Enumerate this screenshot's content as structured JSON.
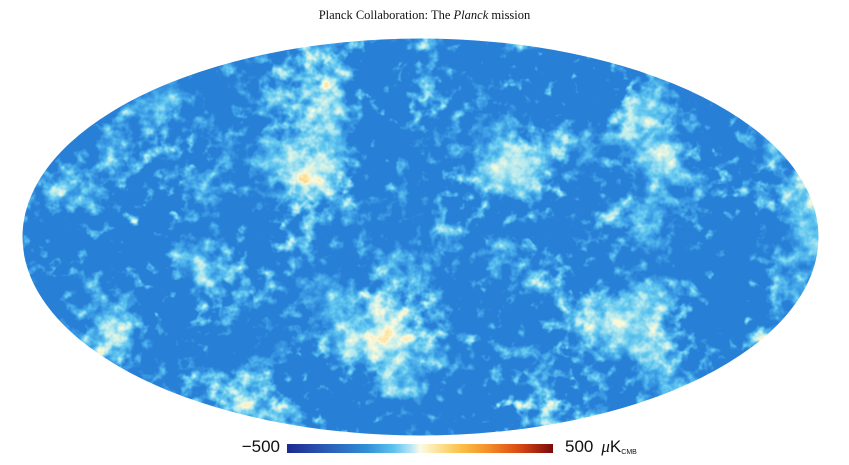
{
  "header": {
    "running_head_prefix": "Planck Collaboration: The ",
    "running_head_italic": "Planck",
    "running_head_suffix": " mission"
  },
  "figure": {
    "colors": {
      "cold": "#2f8fd6",
      "neutral": "#fcfbe6",
      "warm": "#f5a02c"
    },
    "colorbar": {
      "min_label": "−500",
      "max_label": "500",
      "unit_mu": "μ",
      "unit_main": "K",
      "unit_sub": "CMB"
    }
  }
}
